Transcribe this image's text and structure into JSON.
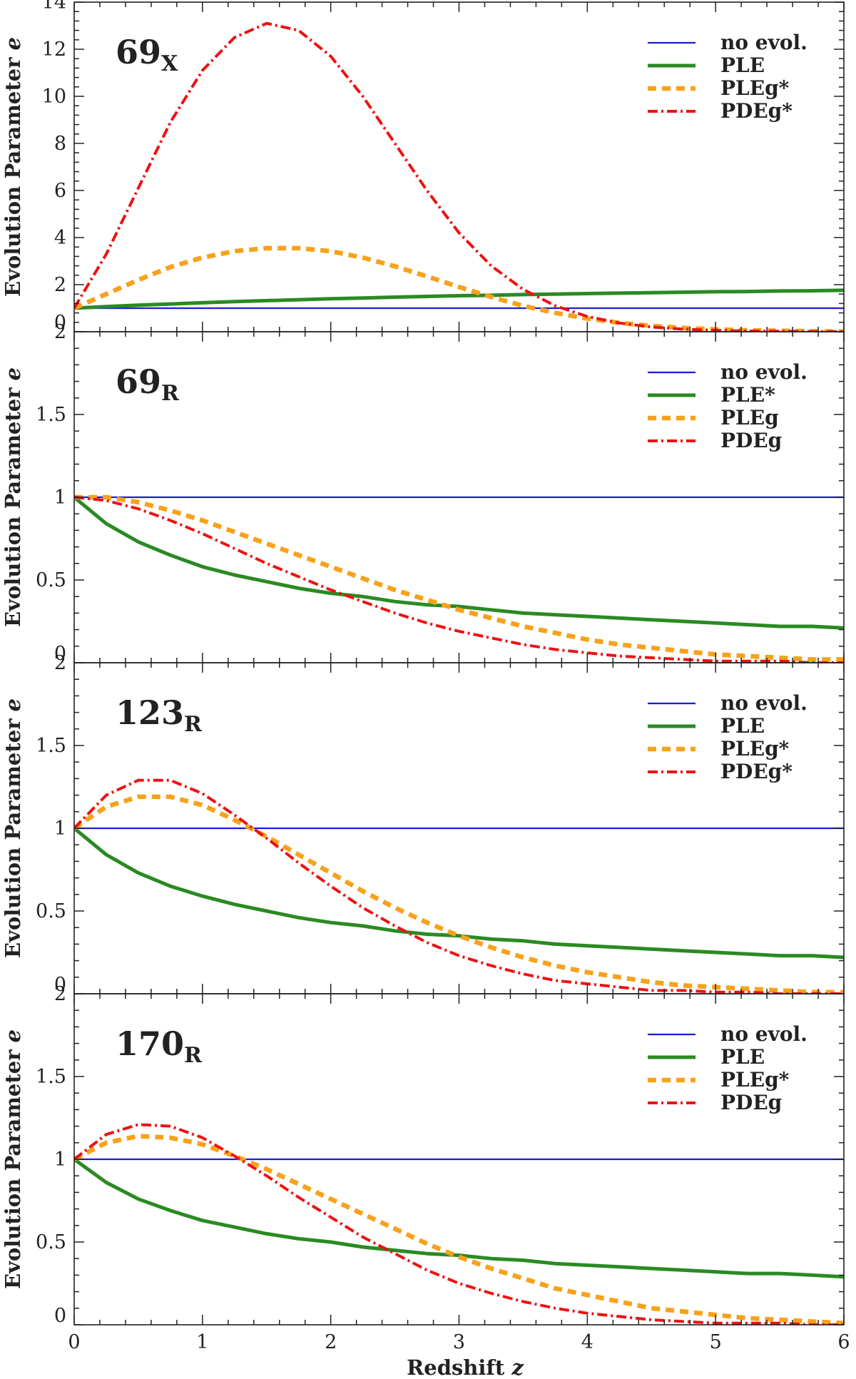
{
  "figure": {
    "xlabel": "Redshift",
    "xlabel_var": "z",
    "ylabel": "Evolution Parameter",
    "ylabel_var": "e"
  },
  "chart_data": [
    {
      "type": "line",
      "panel_label": "69",
      "panel_sub": "X",
      "xlim": [
        0,
        6
      ],
      "ylim": [
        0,
        14
      ],
      "x_ticks": [
        0,
        1,
        2,
        3,
        4,
        5,
        6
      ],
      "y_ticks": [
        "0",
        "2",
        "4",
        "6",
        "8",
        "10",
        "12",
        "14"
      ],
      "legend_position": "top-right",
      "x": [
        0,
        0.25,
        0.5,
        0.75,
        1,
        1.25,
        1.5,
        1.75,
        2,
        2.25,
        2.5,
        2.75,
        3,
        3.25,
        3.5,
        3.75,
        4,
        4.25,
        4.5,
        4.75,
        5,
        5.25,
        5.5,
        5.75,
        6
      ],
      "series": [
        {
          "name": "no evol.",
          "color": "#1c1cd9",
          "style": "solid-thin",
          "values": [
            1,
            1,
            1,
            1,
            1,
            1,
            1,
            1,
            1,
            1,
            1,
            1,
            1,
            1,
            1,
            1,
            1,
            1,
            1,
            1,
            1,
            1,
            1,
            1,
            1
          ]
        },
        {
          "name": "PLE",
          "color": "#2a8a22",
          "style": "solid-thick",
          "values": [
            1.0,
            1.07,
            1.13,
            1.18,
            1.23,
            1.28,
            1.32,
            1.36,
            1.4,
            1.43,
            1.47,
            1.5,
            1.53,
            1.55,
            1.58,
            1.6,
            1.62,
            1.64,
            1.66,
            1.68,
            1.7,
            1.71,
            1.73,
            1.74,
            1.76
          ]
        },
        {
          "name": "PLEg*",
          "color": "#f7a21b",
          "style": "dashed",
          "values": [
            1.0,
            1.6,
            2.2,
            2.75,
            3.15,
            3.42,
            3.55,
            3.55,
            3.42,
            3.15,
            2.78,
            2.35,
            1.9,
            1.48,
            1.1,
            0.8,
            0.56,
            0.38,
            0.25,
            0.16,
            0.1,
            0.06,
            0.04,
            0.02,
            0.01
          ]
        },
        {
          "name": "PDEg*",
          "color": "#ee1111",
          "style": "dashdot",
          "values": [
            1.0,
            3.3,
            6.1,
            8.9,
            11.1,
            12.5,
            13.1,
            12.8,
            11.7,
            10.0,
            8.0,
            6.0,
            4.2,
            2.8,
            1.8,
            1.1,
            0.65,
            0.37,
            0.2,
            0.11,
            0.06,
            0.03,
            0.02,
            0.01,
            0.0
          ]
        }
      ]
    },
    {
      "type": "line",
      "panel_label": "69",
      "panel_sub": "R",
      "xlim": [
        0,
        6
      ],
      "ylim": [
        0,
        2
      ],
      "x_ticks": [
        0,
        1,
        2,
        3,
        4,
        5,
        6
      ],
      "y_ticks": [
        "0",
        "0.5",
        "1",
        "1.5",
        "2"
      ],
      "legend_position": "top-right",
      "x": [
        0,
        0.25,
        0.5,
        0.75,
        1,
        1.25,
        1.5,
        1.75,
        2,
        2.25,
        2.5,
        2.75,
        3,
        3.25,
        3.5,
        3.75,
        4,
        4.25,
        4.5,
        4.75,
        5,
        5.25,
        5.5,
        5.75,
        6
      ],
      "series": [
        {
          "name": "no evol.",
          "color": "#1c1cd9",
          "style": "solid-thin",
          "values": [
            1,
            1,
            1,
            1,
            1,
            1,
            1,
            1,
            1,
            1,
            1,
            1,
            1,
            1,
            1,
            1,
            1,
            1,
            1,
            1,
            1,
            1,
            1,
            1,
            1
          ]
        },
        {
          "name": "PLE*",
          "color": "#2a8a22",
          "style": "solid-thick",
          "values": [
            1.0,
            0.84,
            0.73,
            0.65,
            0.58,
            0.53,
            0.49,
            0.45,
            0.42,
            0.4,
            0.37,
            0.35,
            0.34,
            0.32,
            0.3,
            0.29,
            0.28,
            0.27,
            0.26,
            0.25,
            0.24,
            0.23,
            0.22,
            0.22,
            0.21
          ]
        },
        {
          "name": "PLEg",
          "color": "#f7a21b",
          "style": "dashed",
          "values": [
            1.0,
            1.0,
            0.97,
            0.92,
            0.86,
            0.79,
            0.72,
            0.65,
            0.58,
            0.51,
            0.44,
            0.38,
            0.32,
            0.27,
            0.22,
            0.18,
            0.14,
            0.11,
            0.09,
            0.07,
            0.05,
            0.04,
            0.03,
            0.02,
            0.02
          ]
        },
        {
          "name": "PDEg",
          "color": "#ee1111",
          "style": "dashdot",
          "values": [
            1.0,
            0.98,
            0.93,
            0.86,
            0.78,
            0.69,
            0.6,
            0.52,
            0.44,
            0.37,
            0.3,
            0.24,
            0.19,
            0.15,
            0.11,
            0.08,
            0.06,
            0.04,
            0.03,
            0.02,
            0.01,
            0.01,
            0.01,
            0.0,
            0.0
          ]
        }
      ]
    },
    {
      "type": "line",
      "panel_label": "123",
      "panel_sub": "R",
      "xlim": [
        0,
        6
      ],
      "ylim": [
        0,
        2
      ],
      "x_ticks": [
        0,
        1,
        2,
        3,
        4,
        5,
        6
      ],
      "y_ticks": [
        "0",
        "0.5",
        "1",
        "1.5",
        "2"
      ],
      "legend_position": "top-right",
      "x": [
        0,
        0.25,
        0.5,
        0.75,
        1,
        1.25,
        1.5,
        1.75,
        2,
        2.25,
        2.5,
        2.75,
        3,
        3.25,
        3.5,
        3.75,
        4,
        4.25,
        4.5,
        4.75,
        5,
        5.25,
        5.5,
        5.75,
        6
      ],
      "series": [
        {
          "name": "no evol.",
          "color": "#1c1cd9",
          "style": "solid-thin",
          "values": [
            1,
            1,
            1,
            1,
            1,
            1,
            1,
            1,
            1,
            1,
            1,
            1,
            1,
            1,
            1,
            1,
            1,
            1,
            1,
            1,
            1,
            1,
            1,
            1,
            1
          ]
        },
        {
          "name": "PLE",
          "color": "#2a8a22",
          "style": "solid-thick",
          "values": [
            1.0,
            0.84,
            0.73,
            0.65,
            0.59,
            0.54,
            0.5,
            0.46,
            0.43,
            0.41,
            0.38,
            0.36,
            0.35,
            0.33,
            0.32,
            0.3,
            0.29,
            0.28,
            0.27,
            0.26,
            0.25,
            0.24,
            0.23,
            0.23,
            0.22
          ]
        },
        {
          "name": "PLEg*",
          "color": "#f7a21b",
          "style": "dashed",
          "values": [
            1.0,
            1.13,
            1.19,
            1.19,
            1.14,
            1.05,
            0.95,
            0.84,
            0.73,
            0.62,
            0.52,
            0.43,
            0.35,
            0.28,
            0.22,
            0.17,
            0.13,
            0.1,
            0.07,
            0.05,
            0.04,
            0.03,
            0.02,
            0.01,
            0.01
          ]
        },
        {
          "name": "PDEg*",
          "color": "#ee1111",
          "style": "dashdot",
          "values": [
            1.0,
            1.2,
            1.29,
            1.29,
            1.21,
            1.08,
            0.94,
            0.79,
            0.65,
            0.52,
            0.41,
            0.31,
            0.23,
            0.17,
            0.12,
            0.08,
            0.06,
            0.04,
            0.02,
            0.02,
            0.01,
            0.01,
            0.0,
            0.0,
            0.0
          ]
        }
      ]
    },
    {
      "type": "line",
      "panel_label": "170",
      "panel_sub": "R",
      "xlim": [
        0,
        6
      ],
      "ylim": [
        0,
        2
      ],
      "x_ticks": [
        0,
        1,
        2,
        3,
        4,
        5,
        6
      ],
      "y_ticks": [
        "0",
        "0.5",
        "1",
        "1.5",
        "2"
      ],
      "legend_position": "top-right",
      "x": [
        0,
        0.25,
        0.5,
        0.75,
        1,
        1.25,
        1.5,
        1.75,
        2,
        2.25,
        2.5,
        2.75,
        3,
        3.25,
        3.5,
        3.75,
        4,
        4.25,
        4.5,
        4.75,
        5,
        5.25,
        5.5,
        5.75,
        6
      ],
      "series": [
        {
          "name": "no evol.",
          "color": "#1c1cd9",
          "style": "solid-thin",
          "values": [
            1,
            1,
            1,
            1,
            1,
            1,
            1,
            1,
            1,
            1,
            1,
            1,
            1,
            1,
            1,
            1,
            1,
            1,
            1,
            1,
            1,
            1,
            1,
            1,
            1
          ]
        },
        {
          "name": "PLE",
          "color": "#2a8a22",
          "style": "solid-thick",
          "values": [
            1.0,
            0.86,
            0.76,
            0.69,
            0.63,
            0.59,
            0.55,
            0.52,
            0.5,
            0.47,
            0.45,
            0.43,
            0.42,
            0.4,
            0.39,
            0.37,
            0.36,
            0.35,
            0.34,
            0.33,
            0.32,
            0.31,
            0.31,
            0.3,
            0.29
          ]
        },
        {
          "name": "PLEg*",
          "color": "#f7a21b",
          "style": "dashed",
          "values": [
            1.0,
            1.1,
            1.14,
            1.13,
            1.09,
            1.02,
            0.94,
            0.85,
            0.76,
            0.67,
            0.58,
            0.49,
            0.41,
            0.34,
            0.28,
            0.22,
            0.18,
            0.14,
            0.1,
            0.08,
            0.06,
            0.04,
            0.03,
            0.02,
            0.01
          ]
        },
        {
          "name": "PDEg",
          "color": "#ee1111",
          "style": "dashdot",
          "values": [
            1.0,
            1.15,
            1.21,
            1.2,
            1.13,
            1.02,
            0.9,
            0.77,
            0.65,
            0.53,
            0.43,
            0.33,
            0.25,
            0.19,
            0.14,
            0.1,
            0.07,
            0.05,
            0.03,
            0.02,
            0.01,
            0.01,
            0.01,
            0.0,
            0.0
          ]
        }
      ]
    }
  ]
}
